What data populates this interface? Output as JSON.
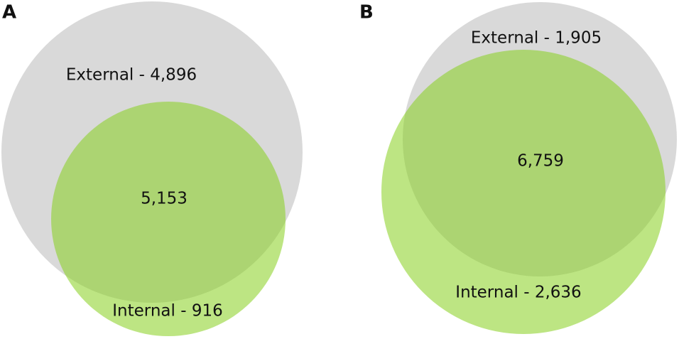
{
  "panels": [
    {
      "label": "A",
      "sets": [
        "External - 4,896",
        "Internal - 916"
      ],
      "overlap": "5,153"
    },
    {
      "label": "B",
      "sets": [
        "External - 1,905",
        "Internal - 2,636"
      ],
      "overlap": "6,759"
    }
  ]
}
